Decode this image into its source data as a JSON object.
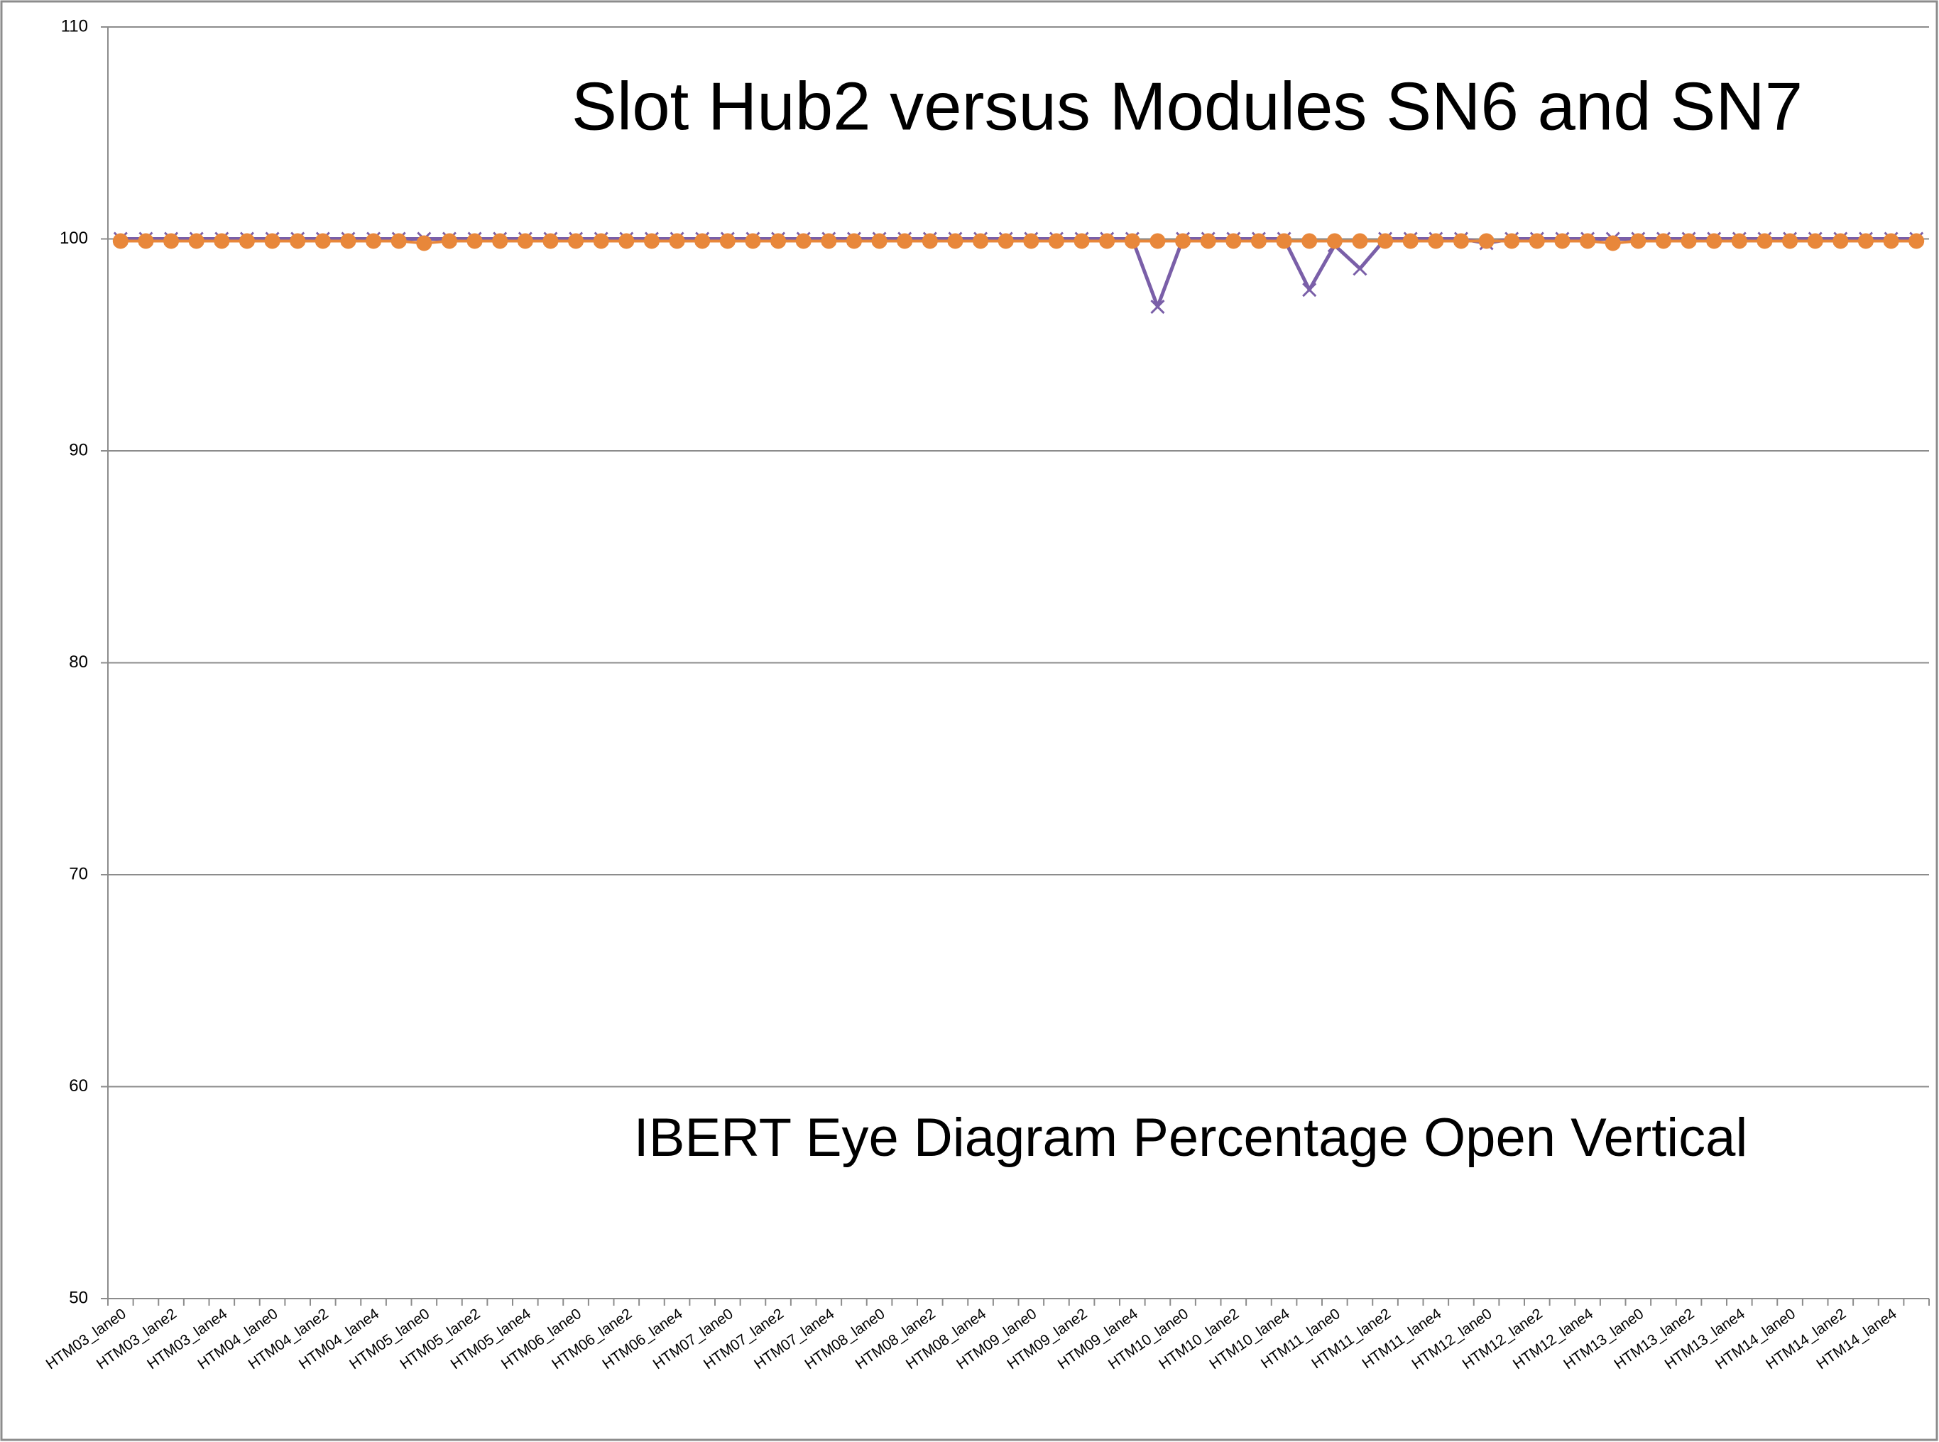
{
  "chart_data": {
    "type": "line",
    "title": "Slot Hub2 versus Modules SN6 and SN7",
    "annotations": [
      "IBERT Eye Diagram Percentage Open Vertical"
    ],
    "categories": [
      "HTM03_lane0",
      null,
      "HTM03_lane2",
      null,
      "HTM03_lane4",
      null,
      "HTM04_lane0",
      null,
      "HTM04_lane2",
      null,
      "HTM04_lane4",
      null,
      "HTM05_lane0",
      null,
      "HTM05_lane2",
      null,
      "HTM05_lane4",
      null,
      "HTM06_lane0",
      null,
      "HTM06_lane2",
      null,
      "HTM06_lane4",
      null,
      "HTM07_lane0",
      null,
      "HTM07_lane2",
      null,
      "HTM07_lane4",
      null,
      "HTM08_lane0",
      null,
      "HTM08_lane2",
      null,
      "HTM08_lane4",
      null,
      "HTM09_lane0",
      null,
      "HTM09_lane2",
      null,
      "HTM09_lane4",
      null,
      "HTM10_lane0",
      null,
      "HTM10_lane2",
      null,
      "HTM10_lane4",
      null,
      "HTM11_lane0",
      null,
      "HTM11_lane2",
      null,
      "HTM11_lane4",
      null,
      "HTM12_lane0",
      null,
      "HTM12_lane2",
      null,
      "HTM12_lane4",
      null,
      "HTM13_lane0",
      null,
      "HTM13_lane2",
      null,
      "HTM13_lane4",
      null,
      "HTM14_lane0",
      null,
      "HTM14_lane2",
      null,
      "HTM14_lane4",
      null
    ],
    "series": [
      {
        "color": "#7a5fa8",
        "marker": "x",
        "values": [
          100,
          100,
          100,
          100,
          100,
          100,
          100,
          100,
          100,
          100,
          100,
          100,
          100,
          100,
          100,
          100,
          100,
          100,
          100,
          100,
          100,
          100,
          100,
          100,
          100,
          100,
          100,
          100,
          100,
          100,
          100,
          100,
          100,
          100,
          100,
          100,
          100,
          100,
          100,
          100,
          100,
          96.8,
          100,
          100,
          100,
          100,
          100,
          97.6,
          99.7,
          98.6,
          100,
          100,
          100,
          100,
          99.8,
          100,
          100,
          100,
          100,
          100,
          100,
          100,
          100,
          100,
          100,
          100,
          100,
          100,
          100,
          100,
          100,
          100
        ]
      },
      {
        "color": "#e8873a",
        "marker": "circle",
        "values": [
          99.9,
          99.9,
          99.9,
          99.9,
          99.9,
          99.9,
          99.9,
          99.9,
          99.9,
          99.9,
          99.9,
          99.9,
          99.8,
          99.9,
          99.9,
          99.9,
          99.9,
          99.9,
          99.9,
          99.9,
          99.9,
          99.9,
          99.9,
          99.9,
          99.9,
          99.9,
          99.9,
          99.9,
          99.9,
          99.9,
          99.9,
          99.9,
          99.9,
          99.9,
          99.9,
          99.9,
          99.9,
          99.9,
          99.9,
          99.9,
          99.9,
          99.9,
          99.9,
          99.9,
          99.9,
          99.9,
          99.9,
          99.9,
          99.9,
          99.9,
          99.9,
          99.9,
          99.9,
          99.9,
          99.9,
          99.9,
          99.9,
          99.9,
          99.9,
          99.8,
          99.9,
          99.9,
          99.9,
          99.9,
          99.9,
          99.9,
          99.9,
          99.9,
          99.9,
          99.9,
          99.9,
          99.9
        ]
      }
    ],
    "ylim": [
      50,
      110
    ],
    "yticks": [
      50,
      60,
      70,
      80,
      90,
      100,
      110
    ],
    "grid": true
  }
}
